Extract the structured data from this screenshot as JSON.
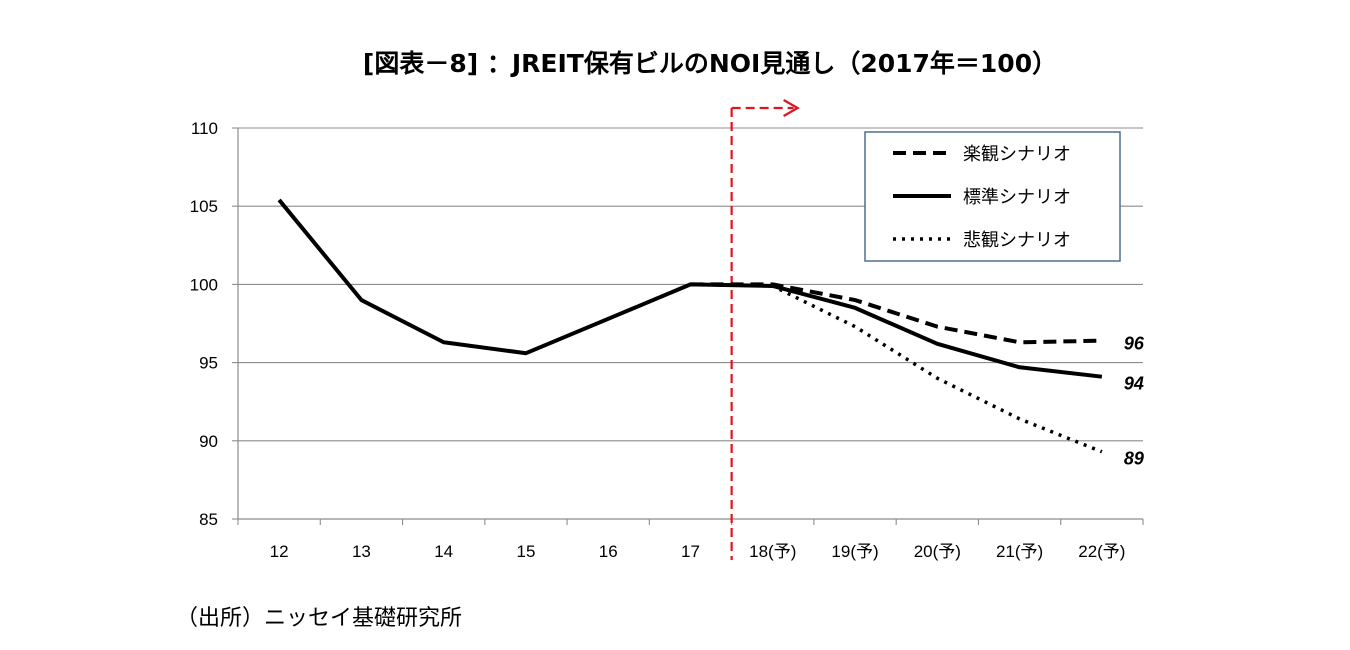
{
  "title": "[図表－8] ：JREIT保有ビルのNOI見通し（2017年＝100）",
  "source": "（出所）ニッセイ基礎研究所",
  "chart_data": {
    "type": "line",
    "categories": [
      "12",
      "13",
      "14",
      "15",
      "16",
      "17",
      "18(予)",
      "19(予)",
      "20(予)",
      "21(予)",
      "22(予)"
    ],
    "ylim": [
      85,
      110
    ],
    "yticks": [
      "85",
      "90",
      "95",
      "100",
      "105",
      "110"
    ],
    "grid": true,
    "legend_position": "top-right",
    "forecast_start_category": "18(予)",
    "series": [
      {
        "name": "楽観シナリオ",
        "style": "dashed",
        "values": [
          null,
          null,
          null,
          null,
          null,
          100,
          100,
          99,
          97.3,
          96.3,
          96.4
        ],
        "end_label": "96"
      },
      {
        "name": "標準シナリオ",
        "style": "solid",
        "values": [
          105.4,
          99,
          96.3,
          95.6,
          97.8,
          100,
          99.9,
          98.5,
          96.2,
          94.7,
          94.1
        ],
        "end_label": "94"
      },
      {
        "name": "悲観シナリオ",
        "style": "dotted",
        "values": [
          null,
          null,
          null,
          null,
          null,
          100,
          99.9,
          97.3,
          94,
          91.4,
          89.3
        ],
        "end_label": "89"
      }
    ],
    "colors": {
      "lines": "#000000",
      "grid": "#8c8c8c",
      "forecast_marker": "#e0141e",
      "legend_border": "#4f6f8f"
    }
  }
}
